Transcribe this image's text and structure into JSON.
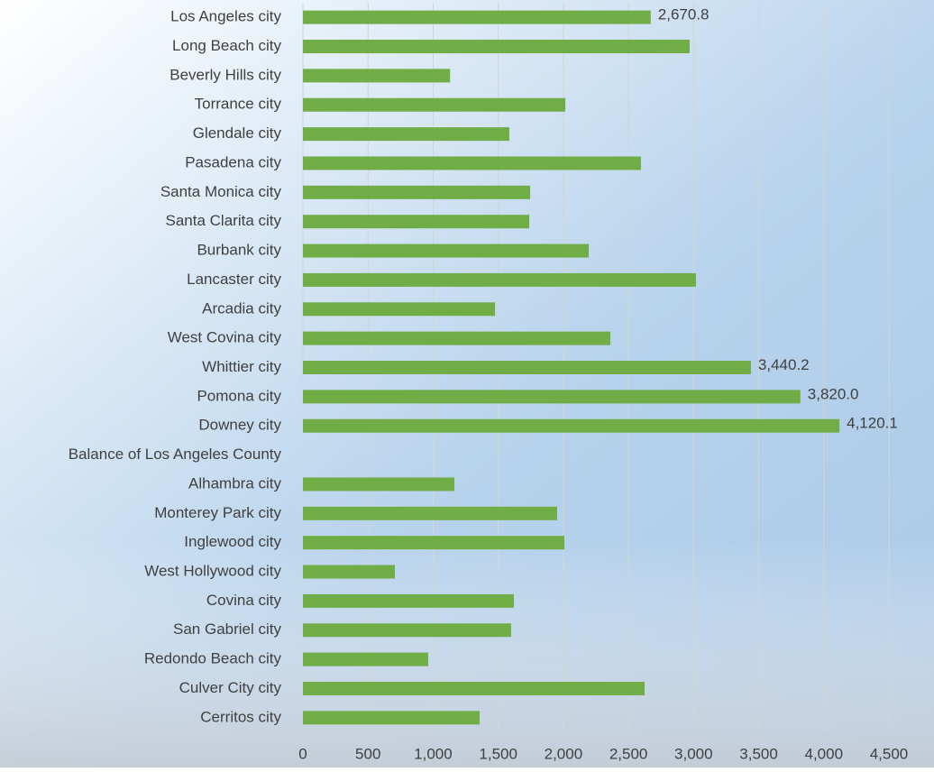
{
  "chart_data": {
    "type": "barh",
    "categories": [
      "Los Angeles city",
      "Long Beach city",
      "Beverly Hills city",
      "Torrance city",
      "Glendale city",
      "Pasadena city",
      "Santa Monica city",
      "Santa Clarita city",
      "Burbank city",
      "Lancaster city",
      "Arcadia city",
      "West Covina city",
      "Whittier city",
      "Pomona city",
      "Downey city",
      "Balance of Los Angeles County",
      "Alhambra city",
      "Monterey Park city",
      "Inglewood city",
      "West Hollywood city",
      "Covina city",
      "San Gabriel city",
      "Redondo Beach city",
      "Culver City city",
      "Cerritos city"
    ],
    "values": [
      2670.8,
      2970,
      1130,
      2015,
      1585,
      2596,
      1745,
      1738,
      2195,
      3018,
      1475,
      2361,
      3440.2,
      3820.0,
      4120.1,
      null,
      1163,
      1952,
      2008,
      706,
      1620,
      1599,
      962,
      2624,
      1357
    ],
    "value_labels": [
      "2,670.8",
      null,
      null,
      null,
      null,
      null,
      null,
      null,
      null,
      null,
      null,
      null,
      "3,440.2",
      "3,820.0",
      "4,120.1",
      null,
      null,
      null,
      null,
      null,
      null,
      null,
      null,
      null,
      null
    ],
    "color": "#70ad47",
    "xlim": [
      0,
      4500
    ],
    "xticks": [
      0,
      500,
      {
        "value": 1000,
        "label": "1,000"
      },
      {
        "value": 1500,
        "label": "1,500"
      },
      {
        "value": 2000,
        "label": "2,000"
      },
      {
        "value": 2500,
        "label": "2,500"
      },
      {
        "value": 3000,
        "label": "3,000"
      },
      {
        "value": 3500,
        "label": "3,500"
      },
      {
        "value": 4000,
        "label": "4,000"
      },
      {
        "value": 4500,
        "label": "4,500"
      }
    ],
    "grid": true
  }
}
